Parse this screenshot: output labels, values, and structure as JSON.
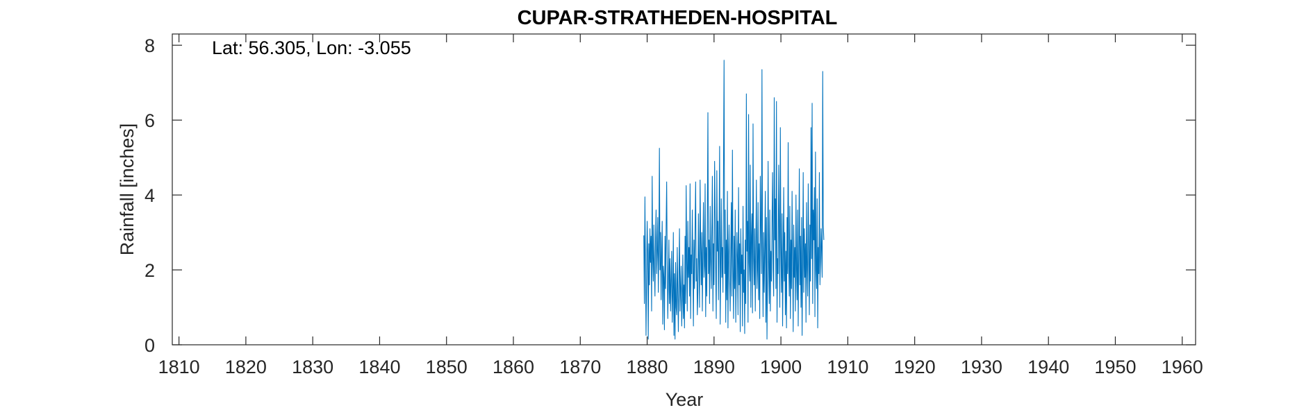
{
  "chart_data": {
    "type": "line",
    "title": "CUPAR-STRATHEDEN-HOSPITAL",
    "annotation": "Lat: 56.305, Lon: -3.055",
    "xlabel": "Year",
    "ylabel": "Rainfall [inches]",
    "xlim": [
      1809,
      1962
    ],
    "ylim": [
      0,
      8.3
    ],
    "xticks": [
      1810,
      1820,
      1830,
      1840,
      1850,
      1860,
      1870,
      1880,
      1890,
      1900,
      1910,
      1920,
      1930,
      1940,
      1950,
      1960
    ],
    "xtick_labels": [
      "1810",
      "1820",
      "1830",
      "1840",
      "1850",
      "1860",
      "1870",
      "1880",
      "1890",
      "1900",
      "1910",
      "1920",
      "1930",
      "1940",
      "1950",
      "1960"
    ],
    "yticks": [
      0,
      2,
      4,
      6,
      8
    ],
    "ytick_labels": [
      "0",
      "2",
      "4",
      "6",
      "8"
    ],
    "grid": false,
    "box": true,
    "colors": {
      "series": "#0072BD",
      "axes": "#262626",
      "background": "#ffffff"
    },
    "series": [
      {
        "x_start": 1879.5,
        "x_step": 0.083333,
        "values": [
          2.92,
          1.1,
          3.95,
          2.1,
          0.25,
          1.8,
          3.3,
          2.4,
          0.15,
          2.7,
          1.6,
          3.1,
          2.2,
          2.9,
          0.9,
          4.5,
          2.3,
          1.7,
          3.2,
          2.0,
          1.3,
          2.8,
          3.6,
          1.9,
          2.5,
          3.4,
          1.4,
          2.6,
          5.25,
          2.0,
          3.0,
          1.2,
          2.4,
          3.3,
          0.55,
          2.1,
          1.8,
          0.4,
          2.9,
          1.5,
          3.1,
          4.35,
          2.2,
          0.7,
          1.6,
          2.8,
          1.1,
          2.3,
          0.9,
          1.7,
          2.5,
          0.6,
          1.3,
          3.0,
          0.25,
          1.9,
          0.15,
          2.2,
          1.0,
          0.8,
          2.6,
          1.4,
          0.35,
          1.8,
          3.1,
          0.9,
          1.5,
          2.1,
          0.5,
          1.2,
          2.4,
          0.7,
          1.6,
          0.45,
          2.9,
          1.1,
          4.25,
          2.2,
          0.9,
          3.3,
          1.8,
          2.6,
          1.3,
          4.3,
          0.7,
          2.4,
          1.9,
          3.6,
          2.1,
          0.5,
          2.8,
          1.5,
          3.2,
          4.35,
          1.7,
          2.3,
          0.8,
          1.4,
          3.5,
          2.2,
          1.0,
          4.4,
          2.7,
          1.6,
          3.0,
          0.9,
          2.5,
          3.8,
          1.8,
          2.1,
          4.3,
          0.75,
          2.6,
          1.3,
          3.4,
          6.2,
          1.9,
          2.8,
          1.1,
          3.7,
          2.3,
          1.5,
          3.1,
          4.5,
          0.9,
          2.7,
          1.6,
          4.9,
          3.5,
          2.0,
          0.7,
          4.65,
          2.5,
          3.3,
          1.2,
          2.9,
          5.3,
          0.55,
          2.2,
          3.9,
          1.8,
          2.6,
          1.4,
          4.7,
          7.6,
          1.9,
          3.6,
          0.6,
          2.8,
          1.2,
          4.1,
          0.45,
          2.4,
          3.2,
          1.7,
          0.9,
          2.5,
          3.8,
          1.3,
          5.2,
          2.1,
          0.7,
          2.9,
          1.5,
          3.6,
          0.6,
          1.8,
          3.0,
          2.3,
          0.8,
          4.2,
          1.6,
          2.7,
          0.35,
          3.1,
          1.9,
          2.4,
          0.5,
          3.7,
          1.4,
          2.0,
          0.3,
          2.8,
          1.1,
          6.7,
          2.5,
          3.3,
          0.6,
          6.15,
          2.2,
          1.7,
          4.8,
          1.0,
          2.9,
          3.5,
          0.85,
          5.9,
          2.3,
          1.6,
          3.1,
          0.9,
          2.6,
          4.4,
          1.5,
          2.0,
          3.8,
          1.2,
          2.7,
          0.7,
          4.5,
          3.2,
          1.9,
          7.35,
          2.4,
          0.75,
          3.0,
          1.4,
          2.6,
          4.1,
          0.6,
          3.4,
          0.15,
          1.8,
          4.9,
          2.2,
          1.1,
          3.6,
          0.9,
          2.5,
          1.7,
          3.3,
          4.6,
          2.0,
          1.3,
          6.6,
          2.8,
          3.9,
          1.5,
          6.5,
          0.6,
          2.3,
          1.9,
          4.8,
          3.1,
          1.0,
          5.8,
          2.6,
          1.4,
          3.5,
          0.5,
          2.2,
          4.2,
          1.7,
          3.0,
          0.8,
          2.5,
          0.45,
          3.4,
          1.9,
          5.4,
          2.1,
          1.3,
          3.7,
          0.7,
          2.8,
          1.5,
          4.1,
          2.3,
          0.35,
          3.2,
          1.8,
          2.6,
          0.9,
          4.0,
          2.0,
          1.2,
          3.6,
          0.5,
          2.4,
          4.7,
          1.6,
          2.9,
          1.0,
          3.4,
          0.25,
          2.2,
          4.6,
          1.4,
          3.1,
          1.8,
          2.7,
          0.6,
          3.8,
          2.0,
          1.3,
          4.3,
          2.5,
          0.8,
          3.2,
          1.7,
          5.8,
          2.3,
          6.45,
          1.1,
          3.6,
          2.8,
          4.2,
          0.75,
          5.15,
          2.0,
          1.5,
          3.9,
          0.45,
          2.6,
          1.9,
          4.6,
          1.6,
          2.2,
          3.1,
          2.5,
          1.8,
          7.3,
          3.2,
          2.8
        ]
      }
    ]
  }
}
